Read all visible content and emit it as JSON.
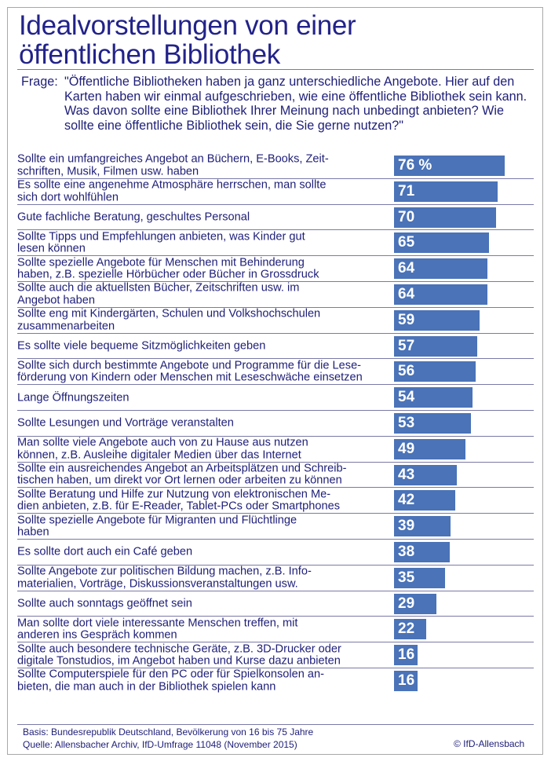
{
  "title_line1": "Idealvorstellungen von einer",
  "title_line2": "öffentlichen Bibliothek",
  "question_label": "Frage:",
  "question_text": "\"Öffentliche Bibliotheken haben ja ganz unterschiedliche Angebote. Hier auf den Karten haben wir einmal aufgeschrieben, wie eine öffentliche Bibliothek sein kann. Was davon sollte eine Bibliothek Ihrer Meinung nach unbedingt anbieten? Wie sollte eine öffentliche Bibliothek sein, die Sie gerne nutzen?\"",
  "chart_data": {
    "type": "bar",
    "orientation": "horizontal",
    "unit": "%",
    "xlim": [
      0,
      100
    ],
    "bar_color": "#4a73b8",
    "categories": [
      "Sollte ein umfangreiches Angebot an Büchern, E-Books, Zeit-\nschriften, Musik, Filmen usw. haben",
      "Es sollte eine angenehme Atmosphäre herrschen, man sollte\nsich dort wohlfühlen",
      "Gute fachliche Beratung, geschultes Personal",
      "Sollte Tipps und Empfehlungen anbieten, was Kinder gut\nlesen können",
      "Sollte spezielle Angebote für Menschen mit Behinderung\nhaben, z.B. spezielle Hörbücher oder Bücher in Grossdruck",
      "Sollte auch die aktuellsten Bücher, Zeitschriften usw. im\nAngebot haben",
      "Sollte eng mit Kindergärten, Schulen und Volkshochschulen\nzusammenarbeiten",
      "Es sollte viele bequeme Sitzmöglichkeiten geben",
      "Sollte sich durch bestimmte Angebote und Programme für die Lese-\nförderung von Kindern oder Menschen mit Leseschwäche einsetzen",
      "Lange Öffnungszeiten",
      "Sollte Lesungen und Vorträge veranstalten",
      "Man sollte viele Angebote auch von zu Hause aus nutzen\nkönnen, z.B. Ausleihe digitaler Medien über das Internet",
      "Sollte ein ausreichendes Angebot an Arbeitsplätzen und Schreib-\ntischen haben, um direkt vor Ort lernen oder arbeiten zu können",
      "Sollte Beratung und Hilfe zur Nutzung von elektronischen Me-\ndien anbieten, z.B. für E-Reader, Tablet-PCs oder Smartphones",
      "Sollte spezielle Angebote für Migranten und Flüchtlinge\nhaben",
      "Es sollte dort auch ein Café geben",
      "Sollte Angebote zur politischen Bildung machen, z.B. Info-\nmaterialien, Vorträge, Diskussionsveranstaltungen usw.",
      "Sollte auch sonntags geöffnet sein",
      "Man sollte dort viele interessante Menschen treffen, mit\nanderen ins Gespräch kommen",
      "Sollte auch besondere technische Geräte, z.B. 3D-Drucker oder\ndigitale Tonstudios, im Angebot haben und Kurse dazu anbieten",
      "Sollte Computerspiele für den PC oder für Spielkonsolen an-\nbieten, die man auch in der Bibliothek spielen kann"
    ],
    "values": [
      76,
      71,
      70,
      65,
      64,
      64,
      59,
      57,
      56,
      54,
      53,
      49,
      43,
      42,
      39,
      38,
      35,
      29,
      22,
      16,
      16
    ],
    "value_labels": [
      "76 %",
      "71",
      "70",
      "65",
      "64",
      "64",
      "59",
      "57",
      "56",
      "54",
      "53",
      "49",
      "43",
      "42",
      "39",
      "38",
      "35",
      "29",
      "22",
      "16",
      "16"
    ]
  },
  "footer": {
    "basis": "Basis: Bundesrepublik Deutschland, Bevölkerung von 16 bis 75 Jahre",
    "source": "Quelle: Allensbacher Archiv, IfD-Umfrage 11048 (November 2015)",
    "copyright": "© IfD-Allensbach"
  }
}
